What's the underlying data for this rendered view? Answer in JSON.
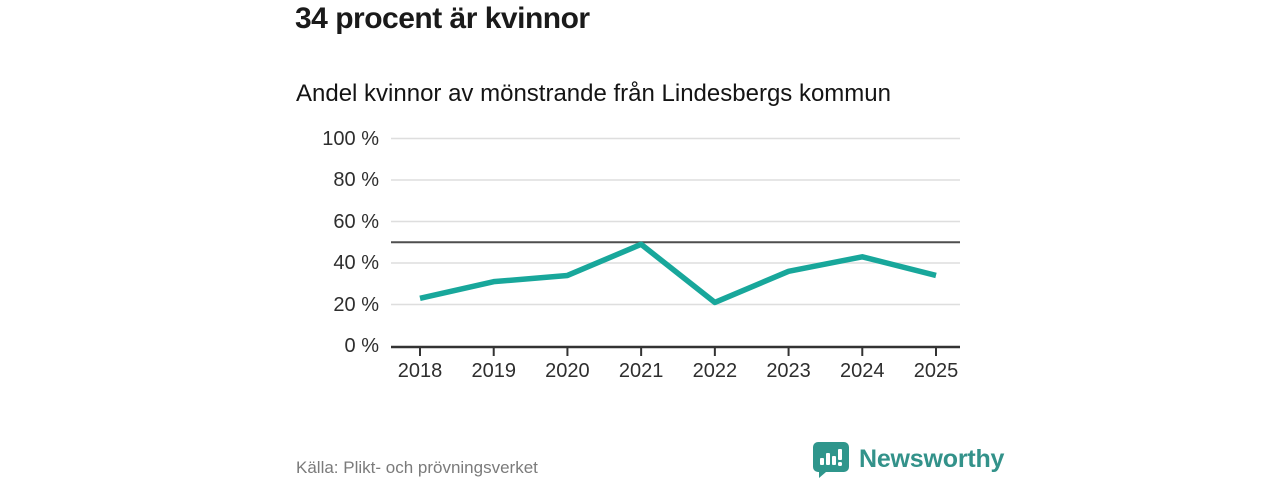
{
  "header": {
    "title": "34 procent är kvinnor",
    "subtitle": "Andel kvinnor av mönstrande från Lindesbergs kommun"
  },
  "chart_data": {
    "type": "line",
    "title": "34 procent är kvinnor",
    "subtitle": "Andel kvinnor av mönstrande från Lindesbergs kommun",
    "x": [
      "2018",
      "2019",
      "2020",
      "2021",
      "2022",
      "2023",
      "2024",
      "2025"
    ],
    "series": [
      {
        "name": "Andel kvinnor av mönstrande",
        "values": [
          23,
          31,
          34,
          49,
          21,
          36,
          43,
          34
        ],
        "color": "#18a79b"
      }
    ],
    "ylim": [
      0,
      100
    ],
    "yticks": [
      0,
      20,
      40,
      60,
      80,
      100
    ],
    "ytick_labels": [
      "0 %",
      "20 %",
      "40 %",
      "60 %",
      "80 %",
      "100 %"
    ],
    "reference_line": 50,
    "grid": true,
    "legend": "none"
  },
  "footer": {
    "source": "Källa: Plikt- och prövningsverket",
    "brand": "Newsworthy",
    "brand_icon": "newsworthy-chart-bubble-icon"
  },
  "colors": {
    "line": "#18a79b",
    "brand_teal": "#33928a",
    "brand_icon_teal": "#2f968c",
    "grid": "#dedede",
    "reference_line": "#4f4f4f",
    "axis": "#333333",
    "text": "#1a1a1a",
    "muted_text": "#7b7b7b",
    "background": "#ffffff"
  }
}
